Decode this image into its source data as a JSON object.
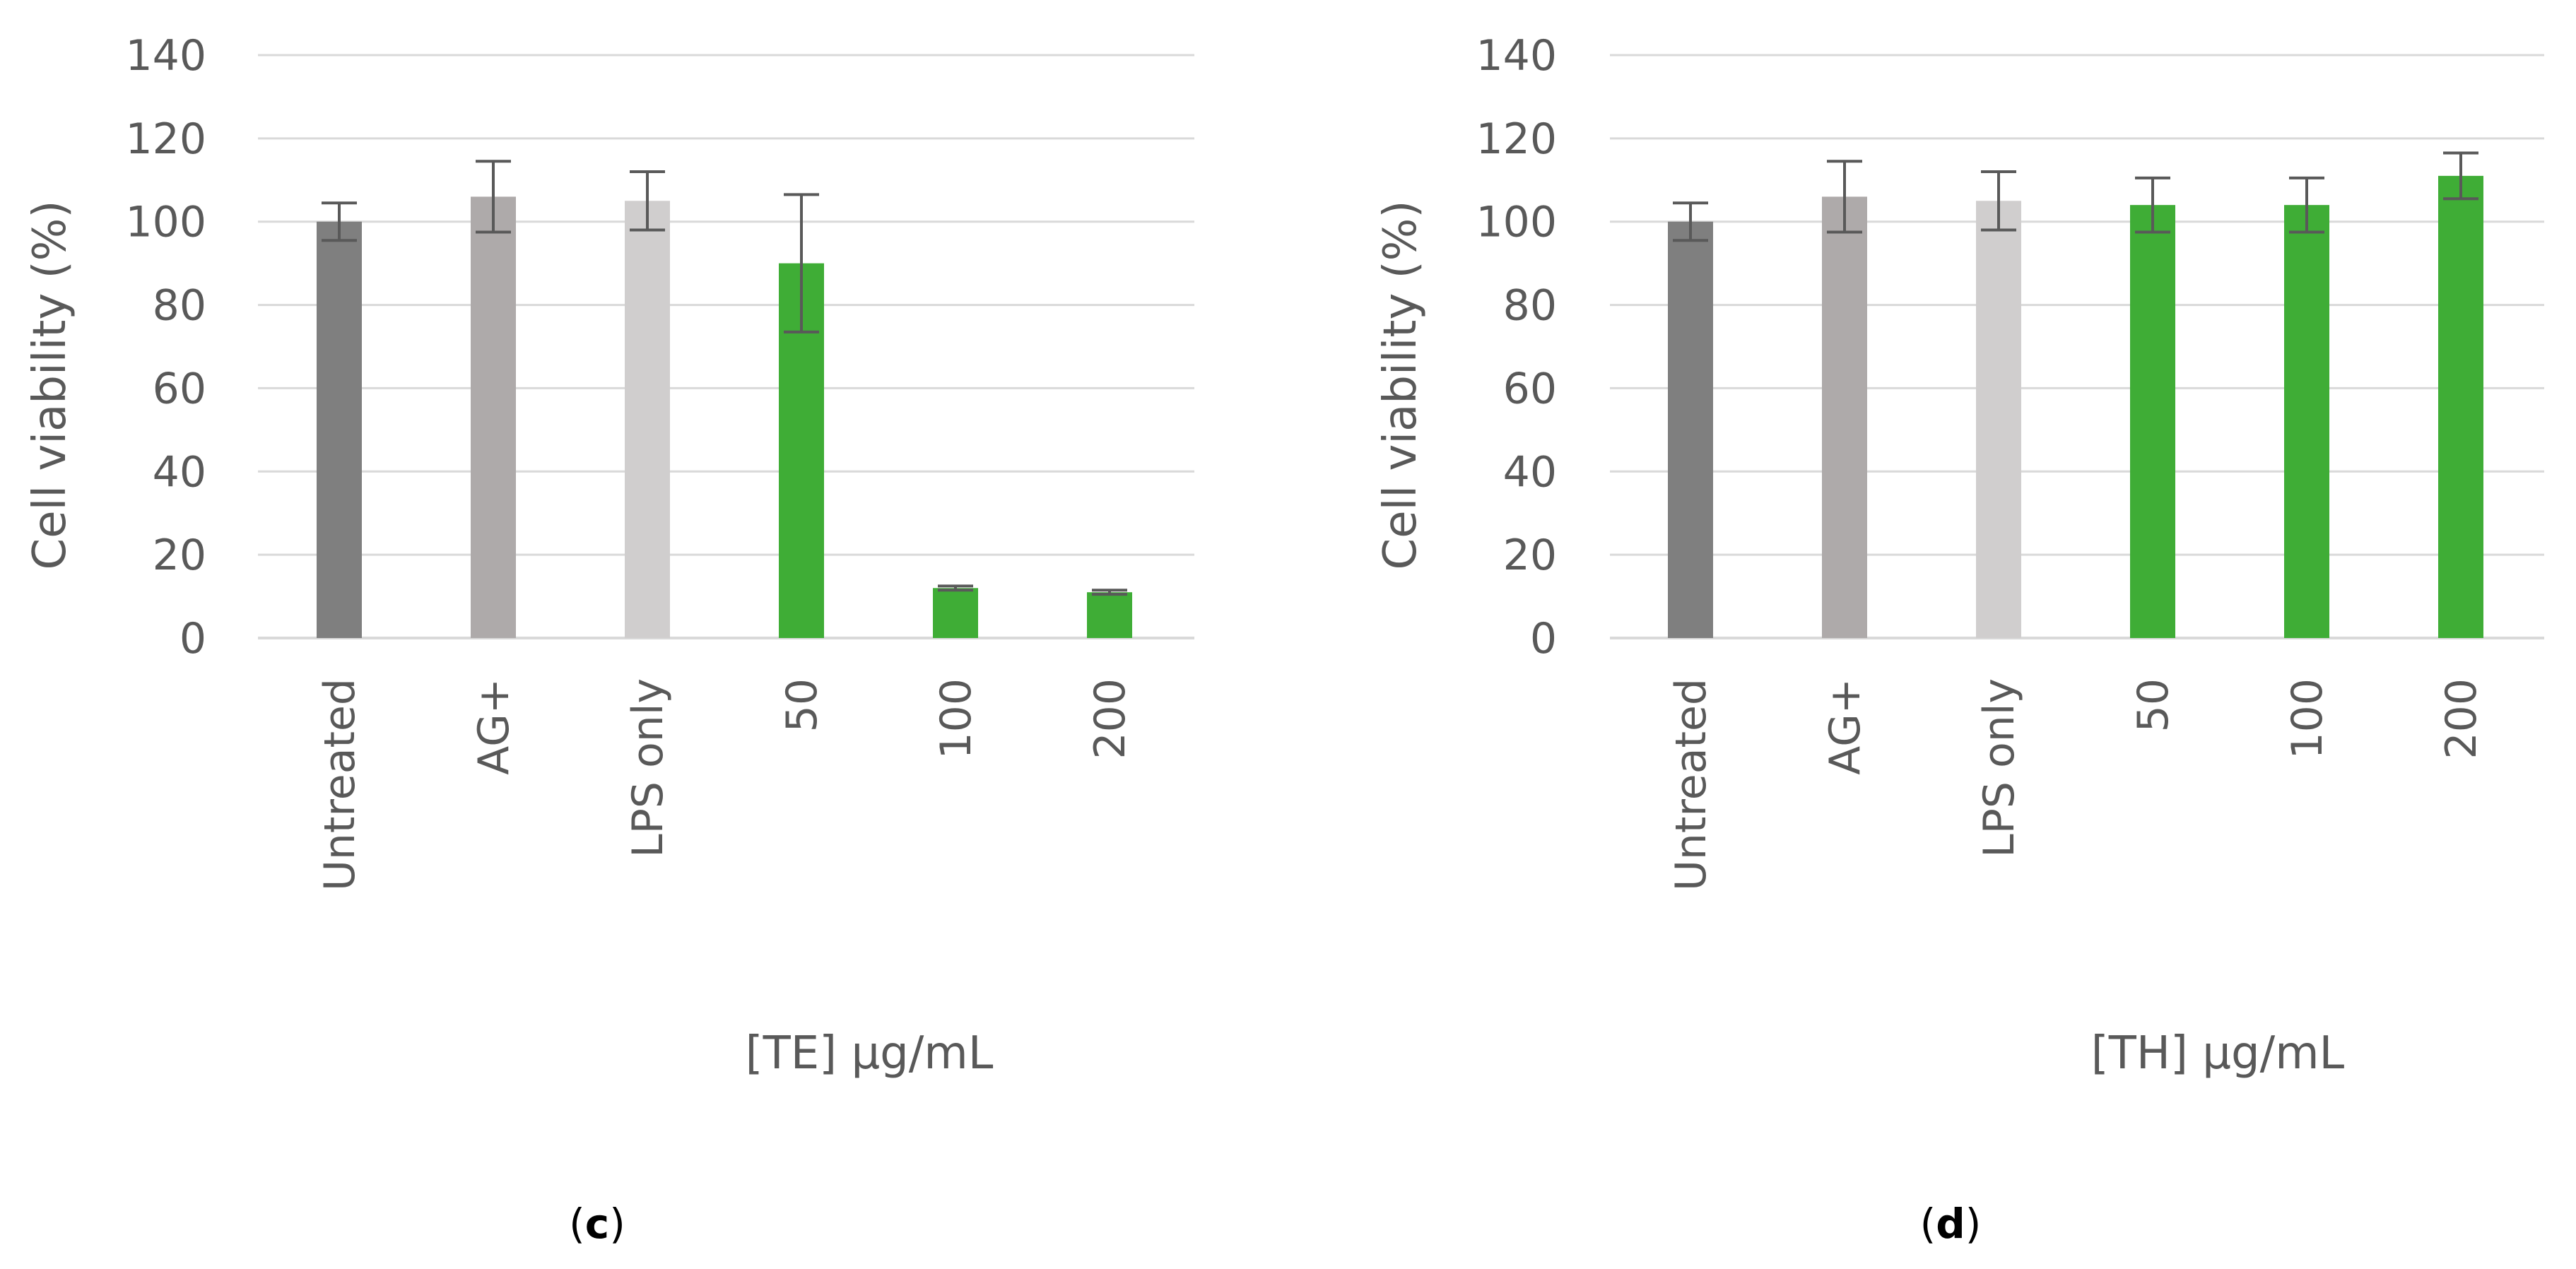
{
  "panels": [
    {
      "label": "c",
      "xlabel": "[TE] μg/mL"
    },
    {
      "label": "d",
      "xlabel": "[TH] μg/mL"
    }
  ],
  "chart_data": [
    {
      "type": "bar",
      "title": "",
      "xlabel": "[TE] μg/mL",
      "ylabel": "Cell viability (%)",
      "ylim": [
        0,
        140
      ],
      "yticks": [
        0,
        20,
        40,
        60,
        80,
        100,
        120,
        140
      ],
      "grid": true,
      "categories": [
        "Untreated",
        "AG+",
        "LPS only",
        "50",
        "100",
        "200"
      ],
      "values": [
        100,
        106,
        105,
        90,
        12,
        11
      ],
      "errors": [
        4.5,
        8.5,
        7,
        16.5,
        0.5,
        0.5
      ],
      "colors": [
        "#7f7f7f",
        "#aeaaaa",
        "#d0cece",
        "#3fad36",
        "#3fad36",
        "#3fad36"
      ],
      "error_color": "#595959"
    },
    {
      "type": "bar",
      "title": "",
      "xlabel": "[TH] μg/mL",
      "ylabel": "Cell viability (%)",
      "ylim": [
        0,
        140
      ],
      "yticks": [
        0,
        20,
        40,
        60,
        80,
        100,
        120,
        140
      ],
      "grid": true,
      "categories": [
        "Untreated",
        "AG+",
        "LPS only",
        "50",
        "100",
        "200"
      ],
      "values": [
        100,
        106,
        105,
        104,
        104,
        111
      ],
      "errors": [
        4.5,
        8.5,
        7,
        6.5,
        6.5,
        5.5
      ],
      "colors": [
        "#7f7f7f",
        "#aeaaaa",
        "#d0cece",
        "#3fad36",
        "#3fad36",
        "#3fad36"
      ],
      "error_color": "#595959"
    }
  ]
}
